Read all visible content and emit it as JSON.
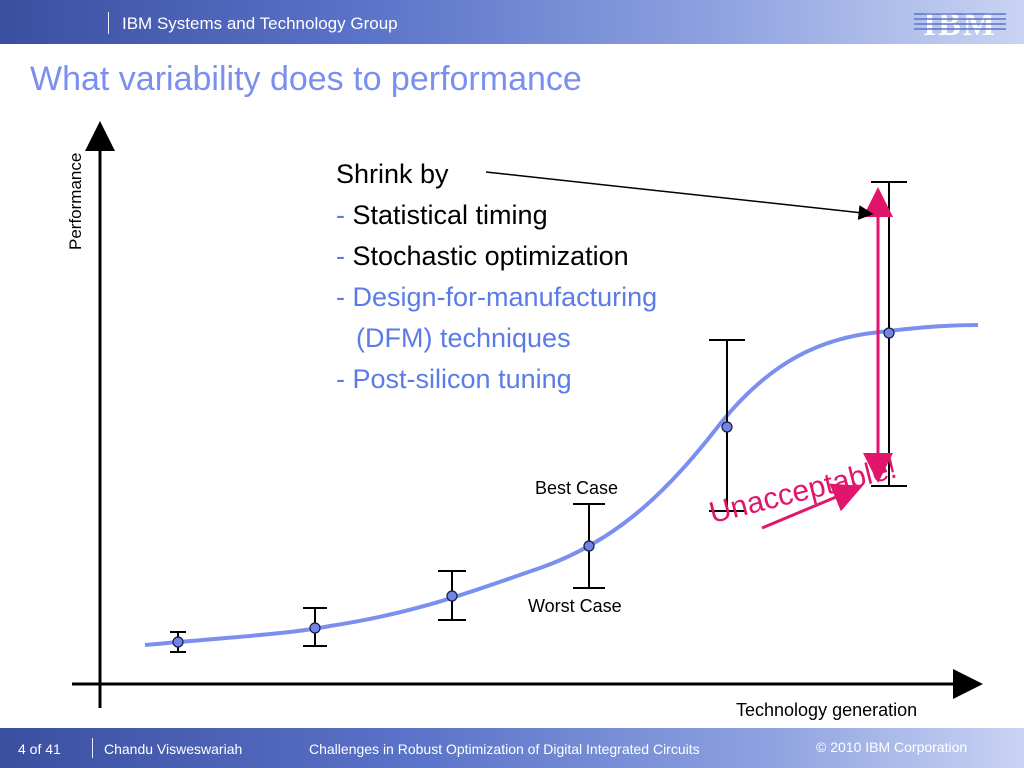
{
  "header": {
    "group": "IBM Systems and Technology Group",
    "logo": "IBM"
  },
  "title": "What variability does to performance",
  "bullets": {
    "intro": "Shrink by",
    "items": [
      {
        "dash": "-",
        "text": "Statistical timing"
      },
      {
        "dash": "-",
        "text": "Stochastic optimization"
      },
      {
        "dash": "-",
        "text": "Design-for-manufacturing"
      },
      {
        "dash": "",
        "text": "(DFM) techniques"
      },
      {
        "dash": "-",
        "text": "Post-silicon tuning"
      }
    ]
  },
  "labels": {
    "best_case": "Best Case",
    "worst_case": "Worst Case",
    "unacceptable": "Unacceptable!",
    "y_axis": "Performance",
    "x_axis": "Technology generation"
  },
  "colors": {
    "curve": "#7b8ff0",
    "accent": "#e0156b",
    "title": "#7a8ff0",
    "marker": "#6f86e8"
  },
  "footer": {
    "page": "4 of 41",
    "author": "Chandu Visweswariah",
    "talk": "Challenges in Robust Optimization of Digital Integrated Circuits",
    "copyright": "© 2010 IBM Corporation"
  }
}
